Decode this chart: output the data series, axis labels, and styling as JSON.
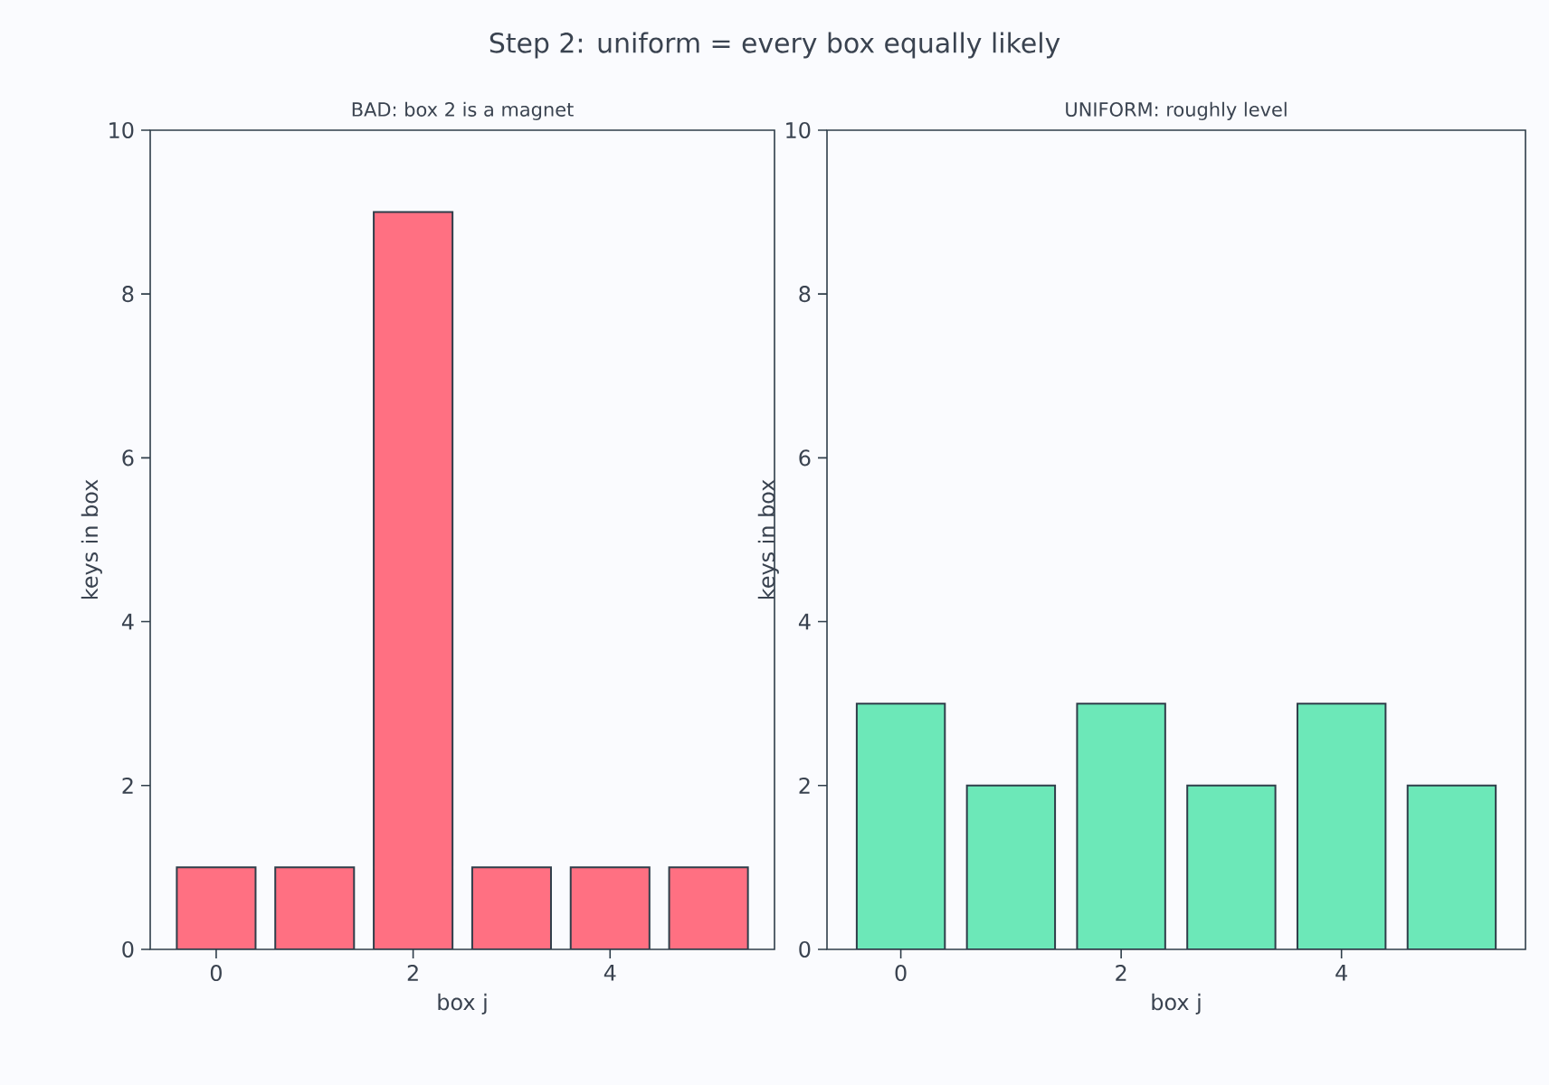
{
  "chart_data": [
    {
      "type": "bar",
      "title": "BAD: box 2 is a magnet",
      "xlabel": "box j",
      "ylabel": "keys in box",
      "annotations": [
        "Step 2: uniform = every box equally likely"
      ],
      "x": [
        0,
        1,
        2,
        3,
        4,
        5
      ],
      "values": [
        1,
        1,
        9,
        1,
        1,
        1
      ],
      "color": "#ff7082",
      "xlim": [
        -0.67,
        5.67
      ],
      "ylim": [
        0,
        10
      ],
      "xticks": [
        0,
        2,
        4
      ],
      "yticks": [
        0,
        2,
        4,
        6,
        8,
        10
      ]
    },
    {
      "type": "bar",
      "title": "UNIFORM: roughly level",
      "xlabel": "box j",
      "ylabel": "keys in box",
      "x": [
        0,
        1,
        2,
        3,
        4,
        5
      ],
      "values": [
        3,
        2,
        3,
        2,
        3,
        2
      ],
      "color": "#6ce8b8",
      "xlim": [
        -0.67,
        5.67
      ],
      "ylim": [
        0,
        10
      ],
      "xticks": [
        0,
        2,
        4
      ],
      "yticks": [
        0,
        2,
        4,
        6,
        8,
        10
      ]
    }
  ]
}
